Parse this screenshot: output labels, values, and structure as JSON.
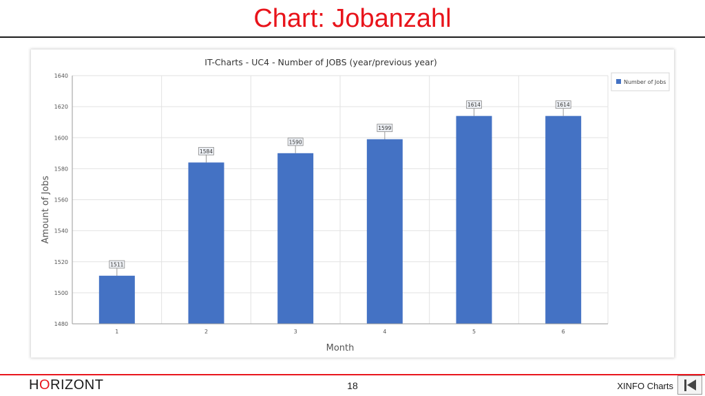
{
  "slide": {
    "title": "Chart: Jobanzahl",
    "brand_prefix": "H",
    "brand_o": "O",
    "brand_suffix": "RIZONT",
    "page_number": "18",
    "footer_label": "XINFO Charts",
    "nav_icon": "first-page-icon"
  },
  "colors": {
    "title": "#e8141b",
    "bar": "#4472c4",
    "footer_rule": "#e8141b"
  },
  "chart_data": {
    "type": "bar",
    "title": "IT-Charts - UC4 - Number of JOBS (year/previous year)",
    "xlabel": "Month",
    "ylabel": "Amount of Jobs",
    "categories": [
      "1",
      "2",
      "3",
      "4",
      "5",
      "6"
    ],
    "series": [
      {
        "name": "Number of Jobs",
        "values": [
          1511,
          1584,
          1590,
          1599,
          1614,
          1614
        ]
      }
    ],
    "ylim": [
      1480,
      1640
    ],
    "yticks": [
      1480,
      1500,
      1520,
      1540,
      1560,
      1580,
      1600,
      1620,
      1640
    ],
    "data_labels": true,
    "grid": true,
    "legend_position": "top-right"
  }
}
